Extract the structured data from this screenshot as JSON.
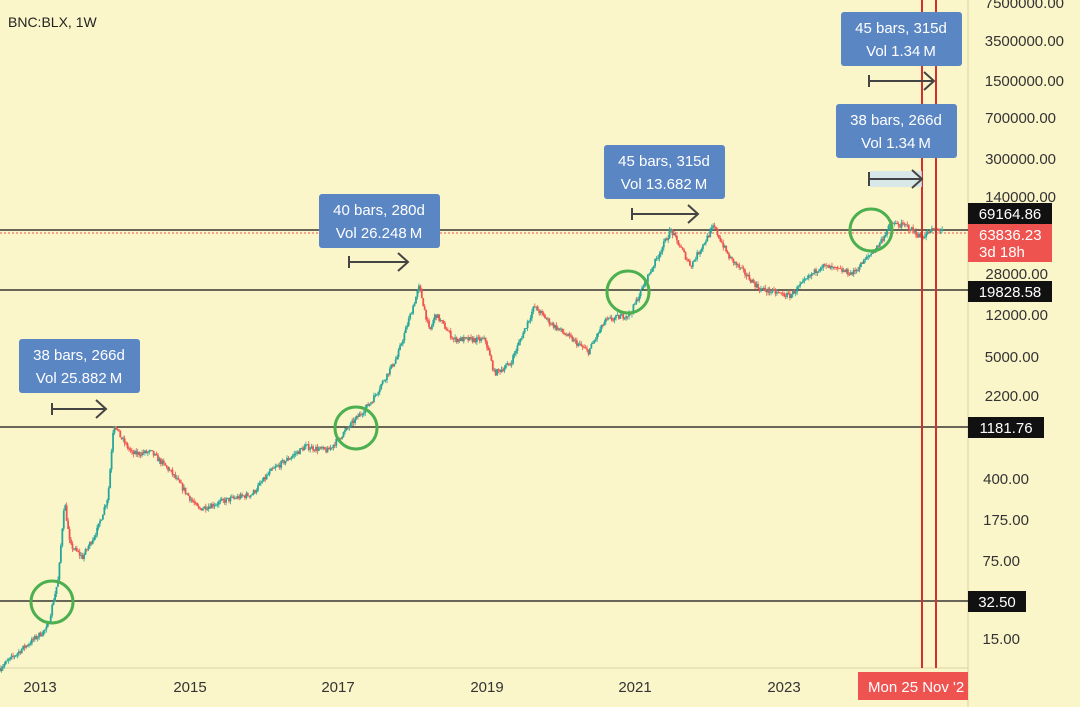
{
  "symbol_label": "BNC:BLX, 1W",
  "colors": {
    "background": "#fbf6c9",
    "candle_up": "#26a69a",
    "candle_down": "#ef5350",
    "level_line": "#111111",
    "vertical_line": "#d32f2f",
    "callout_box": "#5b86c4",
    "circle": "#4caf50",
    "arrow": "#444444",
    "last_price_tag": "#ef5350",
    "price_tag": "#111111"
  },
  "chart_data": {
    "type": "candlestick",
    "scale": "log",
    "x_range": [
      "2012-06-01",
      "2025-03-20"
    ],
    "y_range": [
      7,
      7500000
    ],
    "x_tick_labels": [
      "2013",
      "2015",
      "2017",
      "2019",
      "2021",
      "2023"
    ],
    "y_tick_labels": [
      "7500000.00",
      "3500000.00",
      "1500000.00",
      "700000.00",
      "300000.00",
      "140000.00",
      "28000.00",
      "12000.00",
      "5000.00",
      "2200.00",
      "400.00",
      "175.00",
      "75.00",
      "15.00"
    ],
    "horizontal_levels": [
      {
        "value": 69164.86,
        "label": "69164.86"
      },
      {
        "value": 19828.58,
        "label": "19828.58"
      },
      {
        "value": 1181.76,
        "label": "1181.76"
      },
      {
        "value": 32.5,
        "label": "32.50"
      }
    ],
    "last_price": {
      "value": 63836.23,
      "label": "63836.23",
      "countdown": "3d 18h"
    },
    "date_label": "Mon 25 Nov '2",
    "vertical_lines": [
      "2024-11-25",
      "2025-01-20"
    ],
    "price_path": [
      [
        "2012-06-01",
        7
      ],
      [
        "2012-10-01",
        11
      ],
      [
        "2013-01-15",
        16
      ],
      [
        "2013-03-10",
        45
      ],
      [
        "2013-04-08",
        230
      ],
      [
        "2013-05-05",
        90
      ],
      [
        "2013-07-05",
        70
      ],
      [
        "2013-09-15",
        125
      ],
      [
        "2013-11-05",
        250
      ],
      [
        "2013-12-02",
        1150
      ],
      [
        "2014-01-05",
        850
      ],
      [
        "2014-03-01",
        600
      ],
      [
        "2014-06-01",
        620
      ],
      [
        "2014-09-01",
        420
      ],
      [
        "2015-01-15",
        190
      ],
      [
        "2015-06-01",
        230
      ],
      [
        "2015-10-01",
        260
      ],
      [
        "2016-01-01",
        420
      ],
      [
        "2016-06-15",
        700
      ],
      [
        "2016-10-01",
        640
      ],
      [
        "2017-01-01",
        1000
      ],
      [
        "2017-05-01",
        1800
      ],
      [
        "2017-09-01",
        4500
      ],
      [
        "2017-12-17",
        19500
      ],
      [
        "2018-02-05",
        7500
      ],
      [
        "2018-03-05",
        11000
      ],
      [
        "2018-06-01",
        6500
      ],
      [
        "2018-11-01",
        6400
      ],
      [
        "2018-12-15",
        3200
      ],
      [
        "2019-03-01",
        3900
      ],
      [
        "2019-06-25",
        12800
      ],
      [
        "2019-09-15",
        9000
      ],
      [
        "2020-03-12",
        5000
      ],
      [
        "2020-06-01",
        9500
      ],
      [
        "2020-10-01",
        11000
      ],
      [
        "2020-12-20",
        23000
      ],
      [
        "2021-04-14",
        63000
      ],
      [
        "2021-07-20",
        30000
      ],
      [
        "2021-11-08",
        68000
      ],
      [
        "2022-01-20",
        36000
      ],
      [
        "2022-06-18",
        18500
      ],
      [
        "2022-11-10",
        16000
      ],
      [
        "2023-01-15",
        21000
      ],
      [
        "2023-04-10",
        30000
      ],
      [
        "2023-09-10",
        25500
      ],
      [
        "2024-01-10",
        45000
      ],
      [
        "2024-03-14",
        72000
      ],
      [
        "2024-06-01",
        68000
      ],
      [
        "2024-08-05",
        54000
      ],
      [
        "2024-09-30",
        63000
      ],
      [
        "2024-11-18",
        63836
      ]
    ],
    "callouts": [
      {
        "line1": "38 bars, 266d",
        "line2": "Vol 25.882 M"
      },
      {
        "line1": "40 bars, 280d",
        "line2": "Vol 26.248 M"
      },
      {
        "line1": "45 bars, 315d",
        "line2": "Vol 13.682 M"
      },
      {
        "line1": "45 bars, 315d",
        "line2": "Vol 1.34 M"
      },
      {
        "line1": "38 bars, 266d",
        "line2": "Vol 1.34 M"
      }
    ]
  }
}
